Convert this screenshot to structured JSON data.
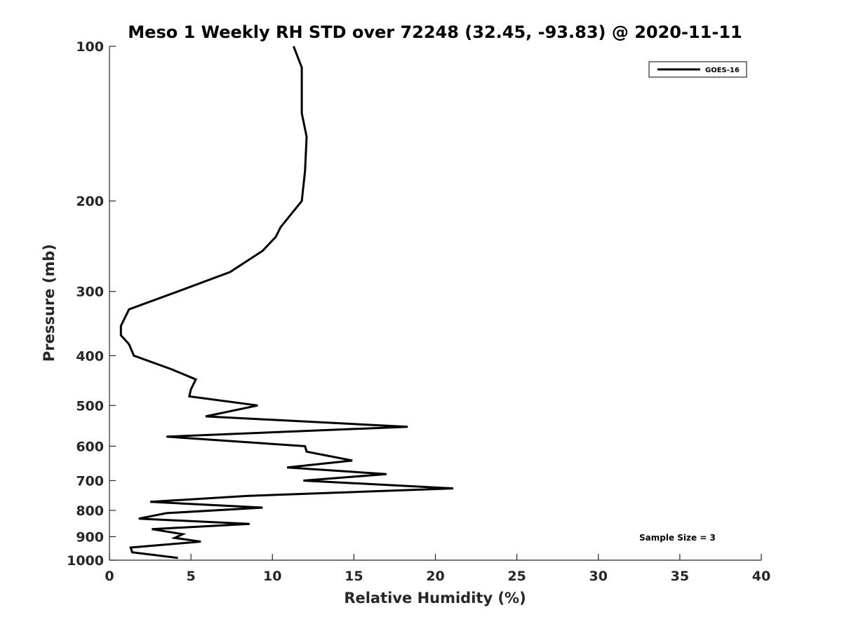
{
  "chart_data": {
    "type": "line",
    "title": "Meso 1 Weekly RH STD over 72248 (32.45, -93.83) @ 2020-11-11",
    "xlabel": "Relative Humidity (%)",
    "ylabel": "Pressure (mb)",
    "xlim": [
      0,
      40
    ],
    "ylim": [
      100,
      1000
    ],
    "y_scale": "log",
    "y_reversed": true,
    "grid": false,
    "legend_position": "top-right",
    "x_ticks": [
      0,
      5,
      10,
      15,
      20,
      25,
      30,
      35,
      40
    ],
    "y_ticks": [
      100,
      200,
      300,
      400,
      500,
      600,
      700,
      800,
      900,
      1000
    ],
    "annotation": "Sample Size = 3",
    "series": [
      {
        "name": "GOES-16",
        "color": "#000000",
        "x": [
          11.3,
          11.8,
          11.8,
          11.8,
          12.1,
          12.0,
          11.8,
          10.5,
          10.2,
          9.4,
          7.4,
          4.2,
          1.2,
          0.7,
          0.7,
          1.2,
          1.5,
          3.8,
          5.3,
          5.0,
          4.9,
          9.1,
          5.9,
          18.3,
          3.5,
          12.0,
          12.1,
          14.9,
          10.9,
          17.0,
          11.9,
          21.1,
          8.4,
          2.5,
          9.4,
          3.5,
          1.8,
          8.6,
          2.6,
          4.5,
          4.0,
          5.6,
          1.3,
          1.4,
          4.2
        ],
        "y": [
          100,
          110,
          125,
          135,
          150,
          175,
          200,
          225,
          235,
          250,
          275,
          300,
          325,
          350,
          365,
          380,
          400,
          425,
          445,
          465,
          480,
          500,
          525,
          550,
          575,
          600,
          615,
          640,
          660,
          680,
          700,
          725,
          750,
          770,
          790,
          810,
          830,
          850,
          870,
          890,
          905,
          920,
          945,
          965,
          990
        ]
      }
    ]
  }
}
